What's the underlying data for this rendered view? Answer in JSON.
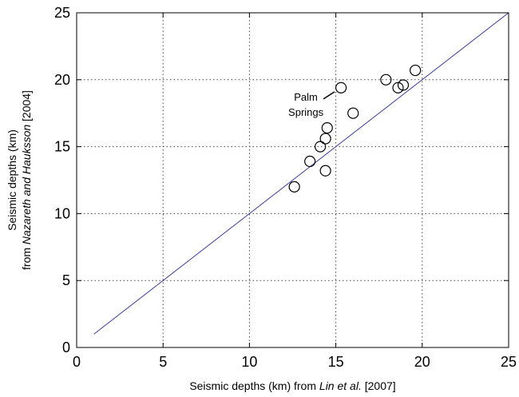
{
  "chart_data": {
    "type": "scatter",
    "title": "",
    "xlabel_parts": [
      "Seismic depths (km) from ",
      "Lin et al.",
      " [2007]"
    ],
    "ylabel_line1": "Seismic depths (km)",
    "ylabel_line2_parts": [
      "from ",
      "Nazareth and Hauksson",
      " [2004]"
    ],
    "xlim": [
      0,
      25
    ],
    "ylim": [
      0,
      25
    ],
    "xticks": [
      "0",
      "5",
      "10",
      "15",
      "20",
      "25"
    ],
    "yticks": [
      "0",
      "5",
      "10",
      "15",
      "20",
      "25"
    ],
    "grid": true,
    "reference_line": {
      "x": [
        1,
        25
      ],
      "y": [
        1,
        25
      ],
      "color": "#3b3b9c"
    },
    "points": [
      {
        "x": 12.6,
        "y": 12.0
      },
      {
        "x": 13.5,
        "y": 13.9
      },
      {
        "x": 14.1,
        "y": 15.0
      },
      {
        "x": 14.4,
        "y": 13.2
      },
      {
        "x": 14.4,
        "y": 15.6
      },
      {
        "x": 14.5,
        "y": 16.4
      },
      {
        "x": 15.3,
        "y": 19.4
      },
      {
        "x": 16.0,
        "y": 17.5
      },
      {
        "x": 17.9,
        "y": 20.0
      },
      {
        "x": 18.6,
        "y": 19.4
      },
      {
        "x": 18.9,
        "y": 19.6
      },
      {
        "x": 19.6,
        "y": 20.7
      }
    ],
    "annotation": {
      "lines": [
        "Palm",
        "Springs"
      ],
      "point_index": 6
    }
  }
}
